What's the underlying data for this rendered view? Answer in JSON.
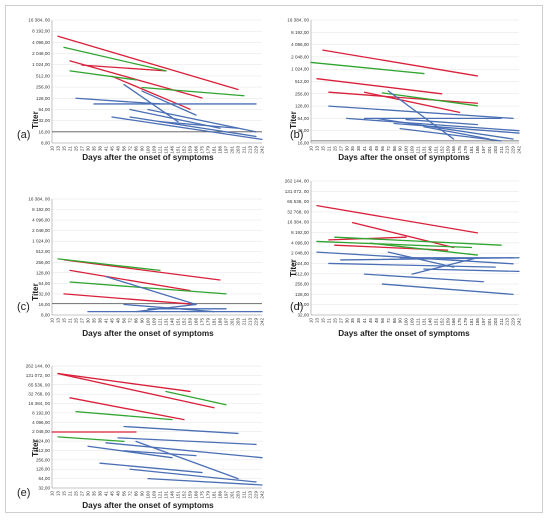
{
  "figure": {
    "x_ticks": [
      "10",
      "13",
      "15",
      "21",
      "25",
      "27",
      "30",
      "35",
      "38",
      "41",
      "45",
      "48",
      "56",
      "72",
      "86",
      "90",
      "100",
      "109",
      "121",
      "131",
      "146",
      "151",
      "152",
      "159",
      "166",
      "175",
      "179",
      "181",
      "186",
      "197",
      "201",
      "203",
      "211",
      "213",
      "229",
      "242"
    ]
  },
  "colors": {
    "red": "#d9203a",
    "green": "#2fa52f",
    "blue": "#4a6fb5"
  },
  "chart_data": [
    {
      "type": "line",
      "panel_label": "(a)",
      "xlabel": "Days after the onset of symptoms",
      "ylabel": "Titer",
      "y_ticks": [
        "8,00",
        "16,00",
        "32,00",
        "64,00",
        "128,00",
        "256,00",
        "512,00",
        "1 024,00",
        "2 048,00",
        "4 096,00",
        "8 192,00",
        "16 384, 00"
      ],
      "ylim": [
        8,
        16384
      ],
      "y_scale": "log2",
      "baseline": 16,
      "series": [
        {
          "color": "red",
          "points": [
            [
              13,
              6000
            ],
            [
              203,
              220
            ]
          ]
        },
        {
          "color": "red",
          "points": [
            [
              21,
              1300
            ],
            [
              175,
              130
            ]
          ]
        },
        {
          "color": "red",
          "points": [
            [
              27,
              1000
            ],
            [
              131,
              700
            ]
          ]
        },
        {
          "color": "red",
          "points": [
            [
              45,
              500
            ],
            [
              159,
              65
            ]
          ]
        },
        {
          "color": "green",
          "points": [
            [
              15,
              3000
            ],
            [
              131,
              700
            ]
          ]
        },
        {
          "color": "green",
          "points": [
            [
              21,
              700
            ],
            [
              86,
              400
            ]
          ]
        },
        {
          "color": "green",
          "points": [
            [
              90,
              250
            ],
            [
              211,
              150
            ]
          ]
        },
        {
          "color": "blue",
          "points": [
            [
              25,
              128
            ],
            [
              121,
              90
            ]
          ]
        },
        {
          "color": "blue",
          "points": [
            [
              35,
              90
            ],
            [
              229,
              90
            ]
          ]
        },
        {
          "color": "blue",
          "points": [
            [
              56,
              300
            ],
            [
              151,
              30
            ]
          ]
        },
        {
          "color": "blue",
          "points": [
            [
              72,
              64
            ],
            [
              186,
              20
            ]
          ]
        },
        {
          "color": "blue",
          "points": [
            [
              90,
              200
            ],
            [
              166,
              45
            ]
          ]
        },
        {
          "color": "blue",
          "points": [
            [
              100,
              64
            ],
            [
              229,
              16
            ]
          ]
        },
        {
          "color": "blue",
          "points": [
            [
              45,
              40
            ],
            [
              242,
              10
            ]
          ]
        },
        {
          "color": "blue",
          "points": [
            [
              72,
              40
            ],
            [
              229,
              12
            ]
          ]
        },
        {
          "color": "blue",
          "points": [
            [
              121,
              30
            ],
            [
              203,
              20
            ]
          ]
        }
      ]
    },
    {
      "type": "line",
      "panel_label": "(b)",
      "xlabel": "Days after the onset of symptoms",
      "ylabel": "Titer",
      "y_ticks": [
        "16,00",
        "32,00",
        "64,00",
        "128,00",
        "256,00",
        "512,00",
        "1 024,00",
        "2 048,00",
        "4 096,00",
        "8 192,00",
        "16 384, 00"
      ],
      "ylim": [
        16,
        16384
      ],
      "y_scale": "log2",
      "baseline": 18,
      "series": [
        {
          "color": "red",
          "points": [
            [
              15,
              3000
            ],
            [
              186,
              700
            ]
          ]
        },
        {
          "color": "red",
          "points": [
            [
              13,
              600
            ],
            [
              152,
              256
            ]
          ]
        },
        {
          "color": "red",
          "points": [
            [
              41,
              280
            ],
            [
              175,
              90
            ]
          ]
        },
        {
          "color": "red",
          "points": [
            [
              21,
              280
            ],
            [
              186,
              150
            ]
          ]
        },
        {
          "color": "green",
          "points": [
            [
              10,
              1500
            ],
            [
              131,
              800
            ]
          ]
        },
        {
          "color": "green",
          "points": [
            [
              56,
              270
            ],
            [
              186,
              130
            ]
          ]
        },
        {
          "color": "blue",
          "points": [
            [
              21,
              128
            ],
            [
              229,
              64
            ]
          ]
        },
        {
          "color": "blue",
          "points": [
            [
              30,
              64
            ],
            [
              242,
              32
            ]
          ]
        },
        {
          "color": "blue",
          "points": [
            [
              41,
              64
            ],
            [
              211,
              64
            ]
          ]
        },
        {
          "color": "blue",
          "points": [
            [
              48,
              64
            ],
            [
              229,
              20
            ]
          ]
        },
        {
          "color": "blue",
          "points": [
            [
              72,
              300
            ],
            [
              166,
              20
            ]
          ]
        },
        {
          "color": "blue",
          "points": [
            [
              86,
              48
            ],
            [
              242,
              28
            ]
          ]
        },
        {
          "color": "blue",
          "points": [
            [
              90,
              36
            ],
            [
              211,
              18
            ]
          ]
        },
        {
          "color": "blue",
          "points": [
            [
              100,
              60
            ],
            [
              186,
              45
            ]
          ]
        },
        {
          "color": "blue",
          "points": [
            [
              131,
              40
            ],
            [
              201,
              20
            ]
          ]
        }
      ]
    },
    {
      "type": "line",
      "panel_label": "(c)",
      "xlabel": "Days after the onset of symptoms",
      "ylabel": "Titer",
      "y_ticks": [
        "8,00",
        "16,00",
        "32,00",
        "64,00",
        "128,00",
        "256,00",
        "512,00",
        "1 024,00",
        "2 048,00",
        "4 096,00",
        "8 192,00",
        "16 384, 00"
      ],
      "ylim": [
        8,
        16384
      ],
      "y_scale": "log2",
      "baseline": 17,
      "series": [
        {
          "color": "red",
          "points": [
            [
              15,
              300
            ],
            [
              186,
              80
            ]
          ]
        },
        {
          "color": "red",
          "points": [
            [
              21,
              150
            ],
            [
              159,
              40
            ]
          ]
        },
        {
          "color": "red",
          "points": [
            [
              15,
              32
            ],
            [
              166,
              16
            ]
          ]
        },
        {
          "color": "green",
          "points": [
            [
              13,
              320
            ],
            [
              121,
              150
            ]
          ]
        },
        {
          "color": "green",
          "points": [
            [
              21,
              70
            ],
            [
              197,
              32
            ]
          ]
        },
        {
          "color": "blue",
          "points": [
            [
              41,
              100
            ],
            [
              166,
              16
            ]
          ]
        },
        {
          "color": "blue",
          "points": [
            [
              30,
              10
            ],
            [
              242,
              10
            ]
          ]
        },
        {
          "color": "blue",
          "points": [
            [
              56,
              16
            ],
            [
              181,
              10
            ]
          ]
        },
        {
          "color": "blue",
          "points": [
            [
              86,
              10
            ],
            [
              166,
              16
            ]
          ]
        },
        {
          "color": "blue",
          "points": [
            [
              100,
              12
            ],
            [
              197,
              12
            ]
          ]
        }
      ]
    },
    {
      "type": "line",
      "panel_label": "(d)",
      "xlabel": "Days after the onset of symptoms",
      "ylabel": "Titer",
      "y_ticks": [
        "32,00",
        "64,00",
        "128,00",
        "256,00",
        "512,00",
        "1 024,00",
        "2 048,00",
        "4 096,00",
        "8 192,00",
        "16 384, 00",
        "32 768, 00",
        "65 536, 00",
        "131 072, 00",
        "262 144, 00"
      ],
      "ylim": [
        32,
        262144
      ],
      "y_scale": "log2",
      "series": [
        {
          "color": "red",
          "points": [
            [
              13,
              50000
            ],
            [
              186,
              8000
            ]
          ]
        },
        {
          "color": "red",
          "points": [
            [
              35,
              16000
            ],
            [
              166,
              3000
            ]
          ]
        },
        {
          "color": "red",
          "points": [
            [
              21,
              5000
            ],
            [
              100,
              6000
            ]
          ]
        },
        {
          "color": "red",
          "points": [
            [
              25,
              3500
            ],
            [
              159,
              2500
            ]
          ]
        },
        {
          "color": "green",
          "points": [
            [
              13,
              4500
            ],
            [
              181,
              3000
            ]
          ]
        },
        {
          "color": "green",
          "points": [
            [
              25,
              6000
            ],
            [
              211,
              3500
            ]
          ]
        },
        {
          "color": "green",
          "points": [
            [
              45,
              4000
            ],
            [
              186,
              1800
            ]
          ]
        },
        {
          "color": "blue",
          "points": [
            [
              13,
              2200
            ],
            [
              229,
              1000
            ]
          ]
        },
        {
          "color": "blue",
          "points": [
            [
              21,
              1024
            ],
            [
              203,
              800
            ]
          ]
        },
        {
          "color": "blue",
          "points": [
            [
              27,
              1300
            ],
            [
              242,
              1500
            ]
          ]
        },
        {
          "color": "blue",
          "points": [
            [
              41,
              500
            ],
            [
              197,
              300
            ]
          ]
        },
        {
          "color": "blue",
          "points": [
            [
              56,
              256
            ],
            [
              229,
              128
            ]
          ]
        },
        {
          "color": "blue",
          "points": [
            [
              72,
              2200
            ],
            [
              166,
              800
            ]
          ]
        },
        {
          "color": "blue",
          "points": [
            [
              90,
              1500
            ],
            [
              229,
              1500
            ]
          ]
        },
        {
          "color": "blue",
          "points": [
            [
              109,
              500
            ],
            [
              186,
              1500
            ]
          ]
        },
        {
          "color": "blue",
          "points": [
            [
              131,
              700
            ],
            [
              242,
              600
            ]
          ]
        }
      ]
    },
    {
      "type": "line",
      "panel_label": "(e)",
      "xlabel": "Days after the onset of symptoms",
      "ylabel": "Titer",
      "y_ticks": [
        "32,00",
        "64,00",
        "128,00",
        "256,00",
        "512,00",
        "1 024,00",
        "2 048,00",
        "4 096,00",
        "8 192,00",
        "16 384, 00",
        "32 768, 00",
        "65 536, 00",
        "131 072, 00",
        "262 144, 00"
      ],
      "ylim": [
        32,
        262144
      ],
      "y_scale": "log2",
      "series": [
        {
          "color": "red",
          "points": [
            [
              13,
              150000
            ],
            [
              159,
              40000
            ]
          ]
        },
        {
          "color": "red",
          "points": [
            [
              13,
              150000
            ],
            [
              181,
              12000
            ]
          ]
        },
        {
          "color": "red",
          "points": [
            [
              21,
              25000
            ],
            [
              152,
              5000
            ]
          ]
        },
        {
          "color": "red",
          "points": [
            [
              10,
              2000
            ],
            [
              86,
              2000
            ]
          ]
        },
        {
          "color": "green",
          "points": [
            [
              131,
              40000
            ],
            [
              197,
              15000
            ]
          ]
        },
        {
          "color": "green",
          "points": [
            [
              25,
              9000
            ],
            [
              146,
              5000
            ]
          ]
        },
        {
          "color": "green",
          "points": [
            [
              13,
              1400
            ],
            [
              56,
              1000
            ]
          ]
        },
        {
          "color": "blue",
          "points": [
            [
              56,
              3000
            ],
            [
              203,
              1800
            ]
          ]
        },
        {
          "color": "blue",
          "points": [
            [
              48,
              1300
            ],
            [
              229,
              800
            ]
          ]
        },
        {
          "color": "blue",
          "points": [
            [
              41,
              900
            ],
            [
              242,
              300
            ]
          ]
        },
        {
          "color": "blue",
          "points": [
            [
              30,
              700
            ],
            [
              146,
              300
            ]
          ]
        },
        {
          "color": "blue",
          "points": [
            [
              56,
              500
            ],
            [
              166,
              350
            ]
          ]
        },
        {
          "color": "blue",
          "points": [
            [
              38,
              200
            ],
            [
              175,
              100
            ]
          ]
        },
        {
          "color": "blue",
          "points": [
            [
              72,
              128
            ],
            [
              229,
              50
            ]
          ]
        },
        {
          "color": "blue",
          "points": [
            [
              100,
              64
            ],
            [
              242,
              40
            ]
          ]
        },
        {
          "color": "blue",
          "points": [
            [
              86,
              1000
            ],
            [
              203,
              64
            ]
          ]
        }
      ]
    }
  ]
}
